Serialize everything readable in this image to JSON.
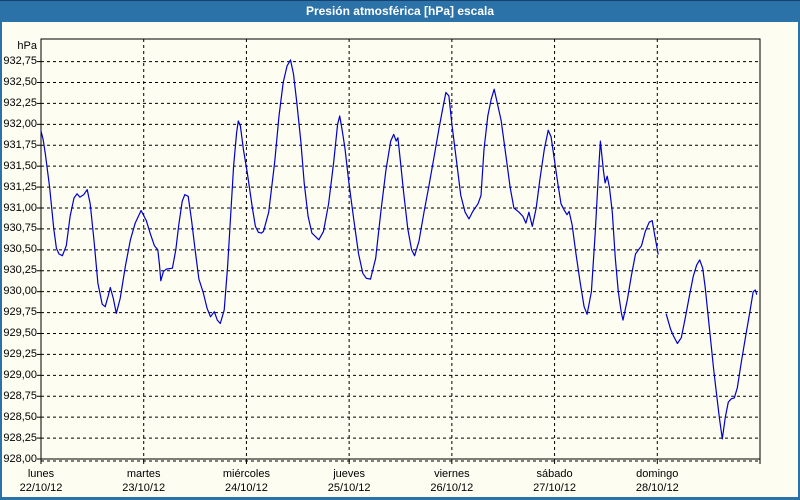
{
  "chart_data": {
    "type": "line",
    "title": "Presión atmosférica [hPa] escala",
    "ylabel": "hPa",
    "ylim": [
      928.0,
      933.02
    ],
    "ytick_step": 0.25,
    "ytick_labels": [
      "932,75",
      "932,50",
      "932,25",
      "932,00",
      "931,75",
      "931,50",
      "931,25",
      "931,00",
      "930,75",
      "930,50",
      "930,25",
      "930,00",
      "929,75",
      "929,50",
      "929,25",
      "929,00",
      "928,75",
      "928,50",
      "928,25",
      "928,00"
    ],
    "xlim_hours": [
      0,
      168
    ],
    "grid": "dashed horizontal and vertical, black on ivory",
    "legend": "none",
    "days": [
      {
        "name": "lunes",
        "date": "22/10/12"
      },
      {
        "name": "martes",
        "date": "23/10/12"
      },
      {
        "name": "miércoles",
        "date": "24/10/12"
      },
      {
        "name": "jueves",
        "date": "25/10/12"
      },
      {
        "name": "viernes",
        "date": "26/10/12"
      },
      {
        "name": "sábado",
        "date": "27/10/12"
      },
      {
        "name": "domingo",
        "date": "28/10/12"
      }
    ],
    "series": [
      {
        "name": "Presión atmosférica [hPa]",
        "color": "#0000cc",
        "x_unit": "hours from lunes 00:00",
        "points": [
          [
            0,
            931.92
          ],
          [
            0.5,
            931.82
          ],
          [
            1,
            931.65
          ],
          [
            2,
            931.25
          ],
          [
            3,
            930.75
          ],
          [
            3.6,
            930.52
          ],
          [
            4.2,
            930.45
          ],
          [
            5,
            930.43
          ],
          [
            5.9,
            930.55
          ],
          [
            6.8,
            930.9
          ],
          [
            7.7,
            931.12
          ],
          [
            8.4,
            931.17
          ],
          [
            9.1,
            931.13
          ],
          [
            10,
            931.16
          ],
          [
            10.8,
            931.22
          ],
          [
            11.5,
            931.05
          ],
          [
            12.4,
            930.6
          ],
          [
            13.3,
            930.1
          ],
          [
            14.3,
            929.85
          ],
          [
            15,
            929.82
          ],
          [
            15.7,
            929.95
          ],
          [
            16.2,
            930.05
          ],
          [
            16.9,
            929.92
          ],
          [
            17.6,
            929.74
          ],
          [
            18.5,
            929.92
          ],
          [
            19.7,
            930.3
          ],
          [
            20.9,
            930.62
          ],
          [
            22,
            930.82
          ],
          [
            23.4,
            930.97
          ],
          [
            24.6,
            930.85
          ],
          [
            25.5,
            930.7
          ],
          [
            26.5,
            930.55
          ],
          [
            27.3,
            930.5
          ],
          [
            27.7,
            930.32
          ],
          [
            28,
            930.13
          ],
          [
            28.6,
            930.24
          ],
          [
            29.3,
            930.27
          ],
          [
            30.7,
            930.28
          ],
          [
            31.5,
            930.5
          ],
          [
            32.2,
            930.8
          ],
          [
            33,
            931.08
          ],
          [
            33.6,
            931.16
          ],
          [
            34.4,
            931.14
          ],
          [
            35.2,
            930.85
          ],
          [
            36,
            930.5
          ],
          [
            36.9,
            930.15
          ],
          [
            37.9,
            929.99
          ],
          [
            38.8,
            929.8
          ],
          [
            39.6,
            929.7
          ],
          [
            40.5,
            929.76
          ],
          [
            41.2,
            929.66
          ],
          [
            41.9,
            929.62
          ],
          [
            42.8,
            929.78
          ],
          [
            43.6,
            930.3
          ],
          [
            44.3,
            930.9
          ],
          [
            45,
            931.5
          ],
          [
            45.7,
            931.9
          ],
          [
            46.1,
            932.04
          ],
          [
            46.6,
            931.98
          ],
          [
            47.3,
            931.7
          ],
          [
            48.2,
            931.42
          ],
          [
            49.4,
            931
          ],
          [
            50.1,
            930.78
          ],
          [
            50.8,
            930.71
          ],
          [
            51.5,
            930.7
          ],
          [
            52,
            930.72
          ],
          [
            53.2,
            930.95
          ],
          [
            54.6,
            931.55
          ],
          [
            55.6,
            932.1
          ],
          [
            56.6,
            932.5
          ],
          [
            57.5,
            932.7
          ],
          [
            58.3,
            932.77
          ],
          [
            59,
            932.6
          ],
          [
            59.8,
            932.25
          ],
          [
            60.7,
            931.8
          ],
          [
            61.5,
            931.3
          ],
          [
            62.4,
            930.9
          ],
          [
            63.3,
            930.7
          ],
          [
            64.9,
            930.62
          ],
          [
            66,
            930.72
          ],
          [
            67.2,
            931.05
          ],
          [
            68.4,
            931.55
          ],
          [
            69.3,
            932
          ],
          [
            69.8,
            932.1
          ],
          [
            70.3,
            931.95
          ],
          [
            71,
            931.72
          ],
          [
            71.9,
            931.32
          ],
          [
            73.1,
            930.85
          ],
          [
            74.2,
            930.45
          ],
          [
            75.2,
            930.22
          ],
          [
            76,
            930.16
          ],
          [
            77,
            930.15
          ],
          [
            78.2,
            930.4
          ],
          [
            79.4,
            930.95
          ],
          [
            80.6,
            931.45
          ],
          [
            81.7,
            931.8
          ],
          [
            82.4,
            931.88
          ],
          [
            83,
            931.8
          ],
          [
            83.4,
            931.84
          ],
          [
            84,
            931.55
          ],
          [
            84.7,
            931.2
          ],
          [
            85.7,
            930.75
          ],
          [
            86.6,
            930.5
          ],
          [
            87.3,
            930.43
          ],
          [
            88.3,
            930.6
          ],
          [
            89.5,
            930.95
          ],
          [
            90.6,
            931.25
          ],
          [
            91.8,
            931.6
          ],
          [
            93,
            931.95
          ],
          [
            93.9,
            932.2
          ],
          [
            94.6,
            932.38
          ],
          [
            95.3,
            932.34
          ],
          [
            96,
            932
          ],
          [
            97,
            931.6
          ],
          [
            98.1,
            931.15
          ],
          [
            99.1,
            930.95
          ],
          [
            100,
            930.87
          ],
          [
            100.9,
            930.96
          ],
          [
            102.1,
            931.05
          ],
          [
            102.8,
            931.15
          ],
          [
            103.5,
            931.7
          ],
          [
            104.4,
            932.1
          ],
          [
            105.2,
            932.3
          ],
          [
            105.9,
            932.42
          ],
          [
            106.5,
            932.28
          ],
          [
            107.5,
            932.05
          ],
          [
            108.7,
            931.6
          ],
          [
            109.6,
            931.25
          ],
          [
            110.5,
            931
          ],
          [
            111.7,
            930.95
          ],
          [
            112.6,
            930.9
          ],
          [
            113.3,
            930.82
          ],
          [
            114,
            930.95
          ],
          [
            114.8,
            930.78
          ],
          [
            115.7,
            931
          ],
          [
            116.6,
            931.35
          ],
          [
            117.6,
            931.7
          ],
          [
            118.5,
            931.93
          ],
          [
            119.2,
            931.85
          ],
          [
            119.9,
            931.6
          ],
          [
            120.8,
            931.28
          ],
          [
            121.5,
            931.05
          ],
          [
            122.2,
            930.98
          ],
          [
            122.9,
            930.92
          ],
          [
            123.4,
            930.96
          ],
          [
            124.1,
            930.8
          ],
          [
            125,
            930.45
          ],
          [
            126,
            930.1
          ],
          [
            126.9,
            929.82
          ],
          [
            127.6,
            929.73
          ],
          [
            128.6,
            930
          ],
          [
            129.5,
            930.7
          ],
          [
            130.4,
            931.55
          ],
          [
            130.7,
            931.8
          ],
          [
            131.4,
            931.45
          ],
          [
            131.8,
            931.3
          ],
          [
            132.3,
            931.38
          ],
          [
            132.8,
            931.25
          ],
          [
            133.5,
            930.95
          ],
          [
            134.2,
            930.4
          ],
          [
            134.9,
            930
          ],
          [
            135.6,
            929.75
          ],
          [
            136,
            929.66
          ],
          [
            137,
            929.9
          ],
          [
            137.9,
            930.18
          ],
          [
            138.9,
            930.45
          ],
          [
            139.6,
            930.5
          ],
          [
            140.3,
            930.55
          ],
          [
            141.2,
            930.72
          ],
          [
            142.1,
            930.83
          ],
          [
            142.8,
            930.85
          ],
          [
            143.5,
            930.65
          ],
          [
            144.2,
            930.45
          ],
          null,
          [
            146.1,
            929.73
          ],
          [
            147.1,
            929.55
          ],
          [
            147.8,
            929.47
          ],
          [
            148.7,
            929.38
          ],
          [
            149.6,
            929.45
          ],
          [
            150.6,
            929.7
          ],
          [
            151.5,
            929.95
          ],
          [
            152.4,
            930.18
          ],
          [
            153.2,
            930.32
          ],
          [
            153.9,
            930.38
          ],
          [
            154.6,
            930.28
          ],
          [
            155.2,
            930.05
          ],
          [
            155.8,
            929.75
          ],
          [
            156.4,
            929.45
          ],
          [
            157.1,
            929.1
          ],
          [
            157.8,
            928.8
          ],
          [
            158.5,
            928.5
          ],
          [
            159.2,
            928.24
          ],
          [
            159.9,
            928.5
          ],
          [
            160.6,
            928.68
          ],
          [
            161.3,
            928.72
          ],
          [
            162,
            928.73
          ],
          [
            162.7,
            928.85
          ],
          [
            163.6,
            929.15
          ],
          [
            164.6,
            929.45
          ],
          [
            165.5,
            929.72
          ],
          [
            166.4,
            930
          ],
          [
            166.9,
            930.02
          ],
          [
            167.2,
            929.97
          ]
        ]
      }
    ]
  },
  "colors": {
    "titlebar_bg": "#2b72a8",
    "titlebar_text": "#ffffff",
    "frame": "#2b72a8",
    "page_bg": "#fdfdf2",
    "plot_border": "#000000",
    "grid": "#000000",
    "series_line": "#0000cc",
    "label_text": "#000000"
  }
}
